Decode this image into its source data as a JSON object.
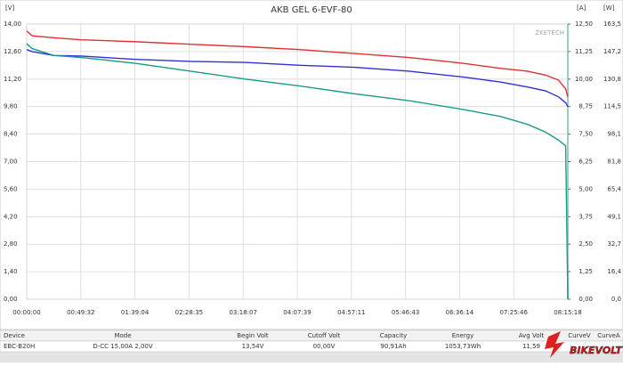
{
  "chart_data": {
    "type": "line",
    "title": "AKB GEL  6-EVF-80",
    "watermark": "ZKETECH",
    "ylabel": "[V]",
    "y2label": "[A]",
    "y3label": "[W]",
    "x": [
      0,
      300,
      1500,
      3000,
      6000,
      9000,
      12000,
      15000,
      18000,
      21000,
      24000,
      26000,
      27500,
      28500,
      29200,
      29600,
      29718
    ],
    "xlim": [
      0,
      29718
    ],
    "xticks": [
      {
        "value": 0,
        "label": "00:00:00"
      },
      {
        "value": 2972,
        "label": "00:49:32"
      },
      {
        "value": 5944,
        "label": "01:39:04"
      },
      {
        "value": 8915,
        "label": "02:28:35"
      },
      {
        "value": 11887,
        "label": "03:18:07"
      },
      {
        "value": 14859,
        "label": "04:07:39"
      },
      {
        "value": 17831,
        "label": "04:57:11"
      },
      {
        "value": 20803,
        "label": "05:46:43"
      },
      {
        "value": 23774,
        "label": "06:36:14"
      },
      {
        "value": 26746,
        "label": "07:25:46"
      },
      {
        "value": 29718,
        "label": "08:15:18"
      }
    ],
    "ylim": [
      0,
      14
    ],
    "yticks": [
      {
        "value": 0,
        "label": "0,00"
      },
      {
        "value": 1.4,
        "label": "1,40"
      },
      {
        "value": 2.8,
        "label": "2,80"
      },
      {
        "value": 4.2,
        "label": "4,20"
      },
      {
        "value": 5.6,
        "label": "5,60"
      },
      {
        "value": 7,
        "label": "7,00"
      },
      {
        "value": 8.4,
        "label": "8,40"
      },
      {
        "value": 9.8,
        "label": "9,80"
      },
      {
        "value": 11.2,
        "label": "11,20"
      },
      {
        "value": 12.6,
        "label": "12,60"
      },
      {
        "value": 14,
        "label": "14,00"
      }
    ],
    "y2lim": [
      0,
      12.5
    ],
    "y2ticks": [
      {
        "value": 0,
        "label": "0,00"
      },
      {
        "value": 1.25,
        "label": "1,25"
      },
      {
        "value": 2.5,
        "label": "2,50"
      },
      {
        "value": 3.75,
        "label": "3,75"
      },
      {
        "value": 5,
        "label": "5,00"
      },
      {
        "value": 6.25,
        "label": "6,25"
      },
      {
        "value": 7.5,
        "label": "7,50"
      },
      {
        "value": 8.75,
        "label": "8,75"
      },
      {
        "value": 10,
        "label": "10,00"
      },
      {
        "value": 11.25,
        "label": "11,25"
      },
      {
        "value": 12.5,
        "label": "12,50"
      }
    ],
    "y3lim": [
      0,
      163.5
    ],
    "y3ticks": [
      {
        "value": 0,
        "label": "0,0"
      },
      {
        "value": 16.35,
        "label": "16,4"
      },
      {
        "value": 32.7,
        "label": "32,7"
      },
      {
        "value": 49.05,
        "label": "49,1"
      },
      {
        "value": 65.4,
        "label": "65,4"
      },
      {
        "value": 81.75,
        "label": "81,8"
      },
      {
        "value": 98.1,
        "label": "98,1"
      },
      {
        "value": 114.45,
        "label": "114,5"
      },
      {
        "value": 130.8,
        "label": "130,8"
      },
      {
        "value": 147.15,
        "label": "147,2"
      },
      {
        "value": 163.5,
        "label": "163,5"
      }
    ],
    "grid": true,
    "series": [
      {
        "color": "#e03030",
        "values": [
          13.65,
          13.4,
          13.3,
          13.2,
          13.1,
          12.97,
          12.85,
          12.7,
          12.5,
          12.3,
          12.0,
          11.75,
          11.6,
          11.4,
          11.15,
          10.7,
          10.3
        ]
      },
      {
        "color": "#3030d8",
        "values": [
          12.7,
          12.6,
          12.4,
          12.37,
          12.2,
          12.1,
          12.05,
          11.9,
          11.8,
          11.6,
          11.3,
          11.05,
          10.8,
          10.6,
          10.3,
          10.0,
          9.8
        ]
      },
      {
        "color": "#1a9a8a",
        "values": [
          13.0,
          12.75,
          12.4,
          12.3,
          12.0,
          11.6,
          11.2,
          10.85,
          10.45,
          10.1,
          9.65,
          9.3,
          8.9,
          8.5,
          8.1,
          7.8,
          0
        ]
      }
    ]
  },
  "table": {
    "header": [
      "Device",
      "Mode",
      "Begin Volt",
      "Cutoff Volt",
      "Capacity",
      "Energy",
      "Avg Volt",
      "CurveV",
      "CurveA"
    ],
    "rows": [
      [
        "EBC-B20H",
        "D-CC 15,00A 2,00V",
        "13,54V",
        "00,00V",
        "90,91Ah",
        "1053,73Wh",
        "11,59"
      ]
    ]
  },
  "logo": "BIKEVOLT"
}
